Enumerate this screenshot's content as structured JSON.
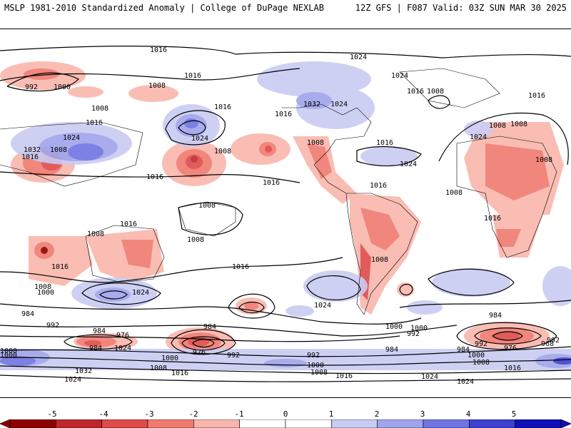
{
  "header": {
    "left_title": "MSLP 1981-2010 Standardized Anomaly | College of DuPage NEXLAB",
    "right_title": "12Z GFS | F087 Valid: 03Z SUN MAR 30 2025"
  },
  "colorbar": {
    "ticks": [
      "-5",
      "-4",
      "-3",
      "-2",
      "-1",
      "0",
      "1",
      "2",
      "3",
      "4",
      "5"
    ],
    "colors": {
      "neg5": "#8b0000",
      "neg4": "#c0272d",
      "neg3": "#de4a4a",
      "neg2": "#f07a70",
      "neg1": "#f9b6ac",
      "neutral": "#ffffff",
      "pos1": "#c9ccf2",
      "pos2": "#9fa4ec",
      "pos3": "#6f74e0",
      "pos4": "#3d40d0",
      "pos5": "#1010b8"
    }
  },
  "isobar_labels": [
    "1016",
    "1024",
    "992",
    "1000",
    "1016",
    "1008",
    "1024",
    "1016",
    "1008",
    "1016",
    "1008",
    "1016",
    "1032",
    "1024",
    "1024",
    "1016",
    "1024",
    "1008",
    "1016",
    "1032",
    "1008",
    "1016",
    "1008",
    "1008",
    "1024",
    "1016",
    "1024",
    "1008",
    "1016",
    "1008",
    "1008",
    "1016",
    "1008",
    "1008",
    "1016",
    "1016",
    "1008",
    "1016",
    "1024",
    "1008",
    "1000",
    "1016",
    "1024",
    "1008",
    "1016",
    "984",
    "992",
    "984",
    "1000",
    "992",
    "976",
    "984",
    "1024",
    "1000",
    "976",
    "984",
    "992",
    "1000",
    "1008",
    "1016",
    "984",
    "992",
    "1000",
    "1008",
    "984",
    "1000",
    "992",
    "984",
    "976",
    "968",
    "992",
    "1000",
    "1008",
    "1016",
    "1032",
    "1024",
    "1024",
    "1016",
    "1000",
    "1024"
  ]
}
